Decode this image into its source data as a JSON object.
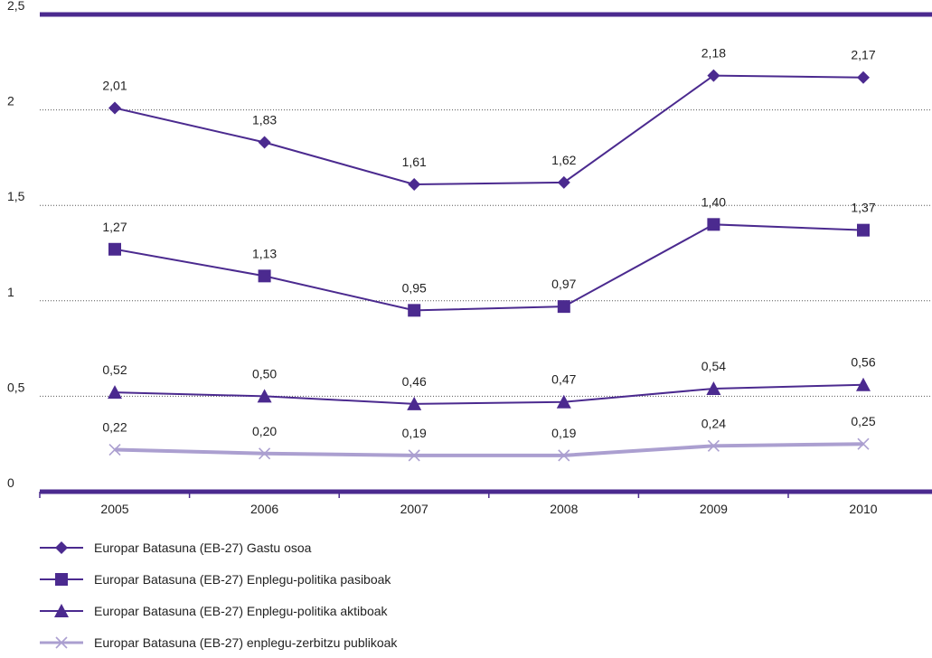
{
  "chart_data": {
    "type": "line",
    "categories": [
      "2005",
      "2006",
      "2007",
      "2008",
      "2009",
      "2010"
    ],
    "ylim": [
      0,
      2.5
    ],
    "y_ticks": [
      "0",
      "0,5",
      "1",
      "1,5",
      "2",
      "2,5"
    ],
    "grid": "horizontal dotted",
    "legend_placement": "bottom",
    "series": [
      {
        "name": "Europar Batasuna (EB-27) Gastu osoa",
        "marker": "diamond",
        "color": "#4b2a8f",
        "values": [
          2.01,
          1.83,
          1.61,
          1.62,
          2.18,
          2.17
        ],
        "labels": [
          "2,01",
          "1,83",
          "1,61",
          "1,62",
          "2,18",
          "2,17"
        ]
      },
      {
        "name": "Europar Batasuna (EB-27) Enplegu-politika pasiboak",
        "marker": "square",
        "color": "#4b2a8f",
        "values": [
          1.27,
          1.13,
          0.95,
          0.97,
          1.4,
          1.37
        ],
        "labels": [
          "1,27",
          "1,13",
          "0,95",
          "0,97",
          "1,40",
          "1,37"
        ]
      },
      {
        "name": "Europar Batasuna (EB-27) Enplegu-politika aktiboak",
        "marker": "triangle",
        "color": "#4b2a8f",
        "values": [
          0.52,
          0.5,
          0.46,
          0.47,
          0.54,
          0.56
        ],
        "labels": [
          "0,52",
          "0,50",
          "0,46",
          "0,47",
          "0,54",
          "0,56"
        ]
      },
      {
        "name": "Europar Batasuna (EB-27) enplegu-zerbitzu publikoak",
        "marker": "x",
        "color": "#ab9fd0",
        "values": [
          0.22,
          0.2,
          0.19,
          0.19,
          0.24,
          0.25
        ],
        "labels": [
          "0,22",
          "0,20",
          "0,19",
          "0,19",
          "0,24",
          "0,25"
        ]
      }
    ]
  }
}
